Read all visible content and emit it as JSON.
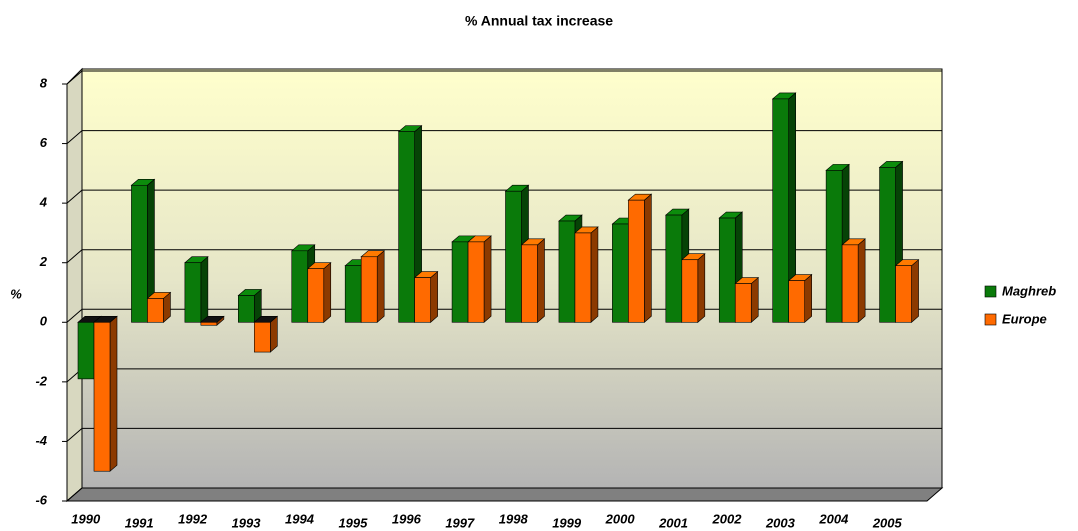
{
  "chart_data": {
    "type": "bar3d",
    "title": "% Annual tax increase",
    "y_label": "%",
    "categories": [
      "1990",
      "1991",
      "1992",
      "1993",
      "1994",
      "1995",
      "1996",
      "1997",
      "1998",
      "1999",
      "2000",
      "2001",
      "2002",
      "2003",
      "2004",
      "2005"
    ],
    "series": [
      {
        "name": "Maghreb",
        "color": "#0a7a0a",
        "values": [
          -1.9,
          4.6,
          2.0,
          0.9,
          2.4,
          1.9,
          6.4,
          2.7,
          4.4,
          3.4,
          3.3,
          3.6,
          3.5,
          7.5,
          5.1,
          5.2
        ]
      },
      {
        "name": "Europe",
        "color": "#ff6a00",
        "values": [
          -5.0,
          0.8,
          -0.1,
          -1.0,
          1.8,
          2.2,
          1.5,
          2.7,
          2.6,
          3.0,
          4.1,
          2.1,
          1.3,
          1.4,
          2.6,
          1.9
        ]
      }
    ],
    "ylim": [
      -6,
      8
    ],
    "yticks": [
      -6,
      -4,
      -2,
      0,
      2,
      4,
      6,
      8
    ],
    "grid": true,
    "legend": "right"
  }
}
